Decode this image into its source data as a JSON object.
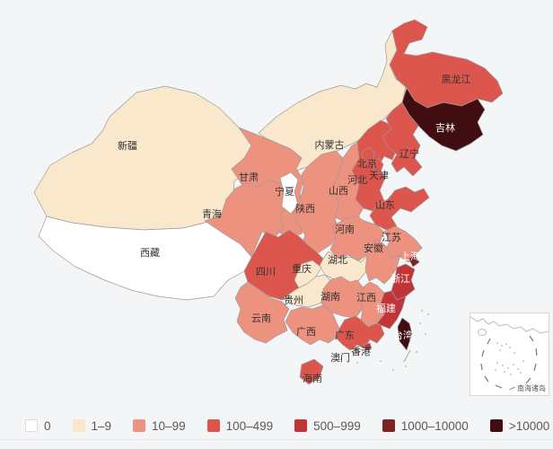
{
  "chart_data": {
    "type": "heatmap",
    "subtype": "choropleth-map-of-china",
    "title": "",
    "legend_position": "bottom-left",
    "inset_label": "南海诸岛",
    "legend": [
      {
        "label": "0",
        "color": "#ffffff"
      },
      {
        "label": "1–9",
        "color": "#fae8cc"
      },
      {
        "label": "10–99",
        "color": "#ee9280"
      },
      {
        "label": "100–499",
        "color": "#dd564e"
      },
      {
        "label": "500–999",
        "color": "#c13438"
      },
      {
        "label": "1000–10000",
        "color": "#7c2326"
      },
      {
        "label": ">10000",
        "color": "#400d10"
      }
    ],
    "regions": [
      {
        "id": "xinjiang",
        "name": "新疆",
        "bin": "1–9",
        "bin_index": 1
      },
      {
        "id": "xizang",
        "name": "西藏",
        "bin": "0",
        "bin_index": 0
      },
      {
        "id": "neimenggu",
        "name": "内蒙古",
        "bin": "1–9",
        "bin_index": 1
      },
      {
        "id": "gansu",
        "name": "甘肃",
        "bin": "10–99",
        "bin_index": 2
      },
      {
        "id": "qinghai",
        "name": "青海",
        "bin": "10–99",
        "bin_index": 2
      },
      {
        "id": "ningxia",
        "name": "宁夏",
        "bin": "0",
        "bin_index": 0
      },
      {
        "id": "shaanxi",
        "name": "陕西",
        "bin": "10–99",
        "bin_index": 2
      },
      {
        "id": "shanxi",
        "name": "山西",
        "bin": "10–99",
        "bin_index": 2
      },
      {
        "id": "hebei",
        "name": "河北",
        "bin": "100–499",
        "bin_index": 3
      },
      {
        "id": "shandong",
        "name": "山东",
        "bin": "100–499",
        "bin_index": 3
      },
      {
        "id": "henan",
        "name": "河南",
        "bin": "10–99",
        "bin_index": 2
      },
      {
        "id": "hubei",
        "name": "湖北",
        "bin": "1–9",
        "bin_index": 1
      },
      {
        "id": "sichuan",
        "name": "四川",
        "bin": "100–499",
        "bin_index": 3
      },
      {
        "id": "chongqing",
        "name": "重庆",
        "bin": "1–9",
        "bin_index": 1
      },
      {
        "id": "guizhou",
        "name": "贵州",
        "bin": "1–9",
        "bin_index": 1
      },
      {
        "id": "yunnan",
        "name": "云南",
        "bin": "10–99",
        "bin_index": 2
      },
      {
        "id": "hunan",
        "name": "湖南",
        "bin": "10–99",
        "bin_index": 2
      },
      {
        "id": "jiangxi",
        "name": "江西",
        "bin": "10–99",
        "bin_index": 2
      },
      {
        "id": "jiangsu",
        "name": "江苏",
        "bin": "10–99",
        "bin_index": 2
      },
      {
        "id": "anhui",
        "name": "安徽",
        "bin": "10–99",
        "bin_index": 2
      },
      {
        "id": "zhejiang",
        "name": "浙江",
        "bin": "500–999",
        "bin_index": 4
      },
      {
        "id": "shanghai",
        "name": "上海",
        "bin": "1000–10000",
        "bin_index": 5
      },
      {
        "id": "fujian",
        "name": "福建",
        "bin": "500–999",
        "bin_index": 4
      },
      {
        "id": "guangxi",
        "name": "广西",
        "bin": "10–99",
        "bin_index": 2
      },
      {
        "id": "guangdong",
        "name": "广东",
        "bin": "100–499",
        "bin_index": 3
      },
      {
        "id": "hainan",
        "name": "海南",
        "bin": "100–499",
        "bin_index": 3
      },
      {
        "id": "taiwan",
        "name": "台湾",
        "bin": ">10000",
        "bin_index": 6
      },
      {
        "id": "hongkong",
        "name": "香港",
        "bin": "500–999",
        "bin_index": 4
      },
      {
        "id": "macau",
        "name": "澳门",
        "bin": "10–99",
        "bin_index": 2
      },
      {
        "id": "heilongjiang",
        "name": "黑龙江",
        "bin": "100–499",
        "bin_index": 3
      },
      {
        "id": "jilin",
        "name": "吉林",
        "bin": ">10000",
        "bin_index": 6
      },
      {
        "id": "liaoning",
        "name": "辽宁",
        "bin": "100–499",
        "bin_index": 3
      },
      {
        "id": "beijing",
        "name": "北京",
        "bin": "100–499",
        "bin_index": 3
      },
      {
        "id": "tianjin",
        "name": "天津",
        "bin": "100–499",
        "bin_index": 3
      }
    ]
  },
  "colors": {
    "background": "#f4f5f6",
    "region_border": "#9b9b9b",
    "label_dark": "#333333",
    "label_light": "#ffffff",
    "sea_detail": "#aaaaaa"
  }
}
